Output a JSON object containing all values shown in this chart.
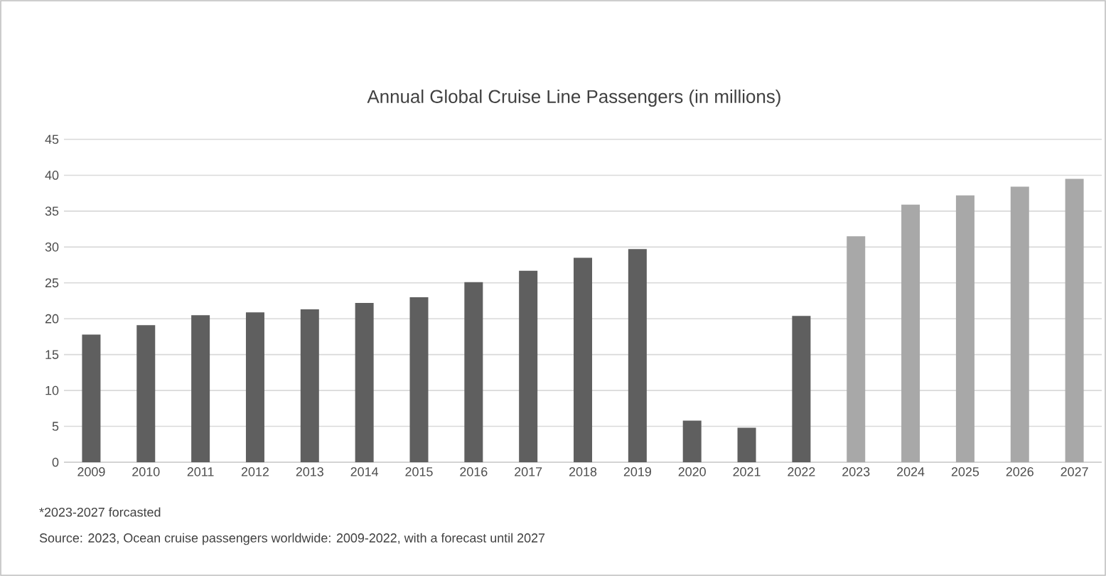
{
  "chart_data": {
    "type": "bar",
    "title": "Annual Global Cruise Line Passengers (in millions)",
    "categories": [
      "2009",
      "2010",
      "2011",
      "2012",
      "2013",
      "2014",
      "2015",
      "2016",
      "2017",
      "2018",
      "2019",
      "2020",
      "2021",
      "2022",
      "2023",
      "2024",
      "2025",
      "2026",
      "2027"
    ],
    "values": [
      17.8,
      19.1,
      20.5,
      20.9,
      21.3,
      22.2,
      23.0,
      25.1,
      26.7,
      28.5,
      29.7,
      5.8,
      4.8,
      20.4,
      31.5,
      35.9,
      37.2,
      38.4,
      39.5
    ],
    "colors": [
      "#5f5f5f",
      "#5f5f5f",
      "#5f5f5f",
      "#5f5f5f",
      "#5f5f5f",
      "#5f5f5f",
      "#5f5f5f",
      "#5f5f5f",
      "#5f5f5f",
      "#5f5f5f",
      "#5f5f5f",
      "#5f5f5f",
      "#5f5f5f",
      "#5f5f5f",
      "#a8a8a8",
      "#a8a8a8",
      "#a8a8a8",
      "#a8a8a8",
      "#a8a8a8"
    ],
    "ylim": [
      0,
      45
    ],
    "yticks": [
      0,
      5,
      10,
      15,
      20,
      25,
      30,
      35,
      40,
      45
    ],
    "grid": "y",
    "annotations": [
      "*2023-2027 forcasted",
      "Source: 2023, Ocean cruise passengers worldwide: 2009-2022, with a forecast until 2027"
    ]
  }
}
